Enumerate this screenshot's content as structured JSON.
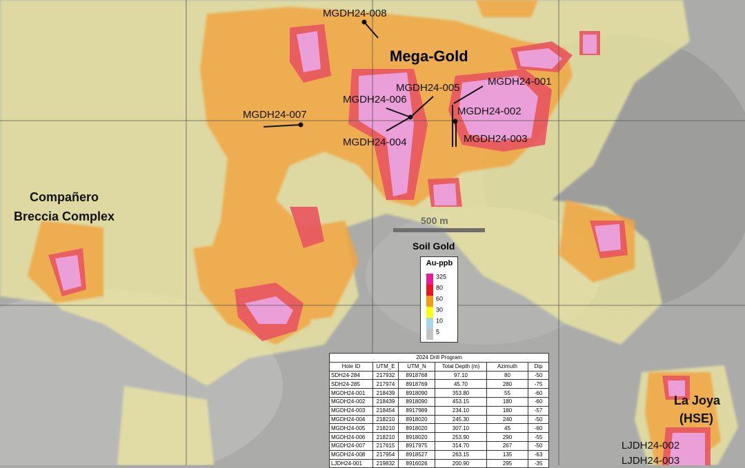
{
  "map": {
    "labels": [
      "MGDH24-008",
      "Mega-Gold",
      "MGDH24-005",
      "MGDH24-001",
      "MGDH24-006",
      "MGDH24-002",
      "MGDH24-007",
      "MGDH24-004",
      "MGDH24-003",
      "Compañero",
      "Breccia Complex",
      "500 m",
      "Soil Gold",
      "La Joya",
      "(HSE)",
      "LJDH24-002",
      "LJDH24-003"
    ],
    "legend": {
      "title": "Au-ppb",
      "items": [
        {
          "label": "325",
          "color": "#e8199a"
        },
        {
          "label": "80",
          "color": "#e8141e"
        },
        {
          "label": "60",
          "color": "#f39a1a"
        },
        {
          "label": "30",
          "color": "#ffff10"
        },
        {
          "label": "10",
          "color": "#a8d8e8"
        },
        {
          "label": "5",
          "color": "#c4c4c4"
        }
      ]
    },
    "table": {
      "title": "2024 Drill Program",
      "header": [
        "Hole ID",
        "UTM_E",
        "UTM_N",
        "Total Depth (m)",
        "Azimuth",
        "Dip"
      ],
      "rows": [
        [
          "SDH24-284",
          "217932",
          "8918768",
          "97.10",
          "80",
          "-50"
        ],
        [
          "SDH24-285",
          "217974",
          "8918769",
          "45.70",
          "280",
          "-75"
        ],
        [
          "MGDH24-001",
          "218439",
          "8918090",
          "353.80",
          "55",
          "-60"
        ],
        [
          "MGDH24-002",
          "218439",
          "8918090",
          "453.15",
          "180",
          "-60"
        ],
        [
          "MGDH24-003",
          "218454",
          "8917989",
          "234.10",
          "180",
          "-57"
        ],
        [
          "MGDH24-004",
          "218210",
          "8918020",
          "245.30",
          "240",
          "-50"
        ],
        [
          "MGDH24-005",
          "218210",
          "8918020",
          "307.10",
          "45",
          "-60"
        ],
        [
          "MGDH24-006",
          "218210",
          "8918020",
          "253.90",
          "290",
          "-55"
        ],
        [
          "MGDH24-007",
          "217615",
          "8917975",
          "314.70",
          "267",
          "-50"
        ],
        [
          "MGDH24-008",
          "217954",
          "8918527",
          "263.15",
          "135",
          "-63"
        ],
        [
          "LJDH24-001",
          "219832",
          "8916026",
          "200.90",
          "295",
          "-35"
        ]
      ]
    }
  }
}
